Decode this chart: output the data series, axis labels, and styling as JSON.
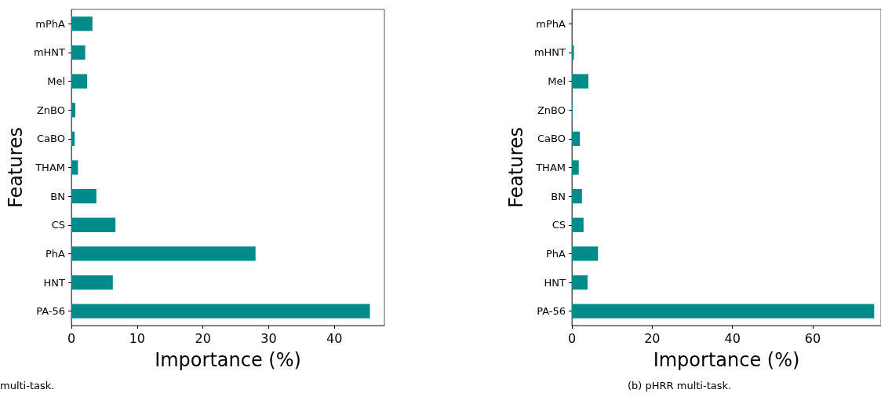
{
  "chart_data": [
    {
      "type": "bar",
      "orientation": "horizontal",
      "categories": [
        "mPhA",
        "mHNT",
        "Mel",
        "ZnBO",
        "CaBO",
        "THAM",
        "BN",
        "CS",
        "PhA",
        "HNT",
        "PA-56"
      ],
      "values": [
        3.2,
        2.1,
        2.4,
        0.6,
        0.5,
        1.0,
        3.8,
        6.7,
        28.0,
        6.3,
        45.4
      ],
      "color": "#008b8b",
      "xlim": [
        0,
        47.6
      ],
      "xticks": [
        0,
        10,
        20,
        30,
        40
      ],
      "xlabel": "Importance (%)",
      "ylabel": "Features",
      "grid": false,
      "annotations": [
        "multi-task."
      ]
    },
    {
      "type": "bar",
      "orientation": "horizontal",
      "categories": [
        "mPhA",
        "mHNT",
        "Mel",
        "ZnBO",
        "CaBO",
        "THAM",
        "BN",
        "CS",
        "PhA",
        "HNT",
        "PA-56"
      ],
      "values": [
        0,
        0.5,
        4.1,
        0.2,
        2.0,
        1.7,
        2.5,
        2.9,
        6.5,
        3.9,
        75.3
      ],
      "color": "#008b8b",
      "xlim": [
        0,
        77
      ],
      "xticks": [
        0,
        20,
        40,
        60
      ],
      "xlabel": "Importance (%)",
      "ylabel": "Features",
      "grid": false,
      "annotations": [
        "(b) pHRR multi-task."
      ]
    }
  ]
}
